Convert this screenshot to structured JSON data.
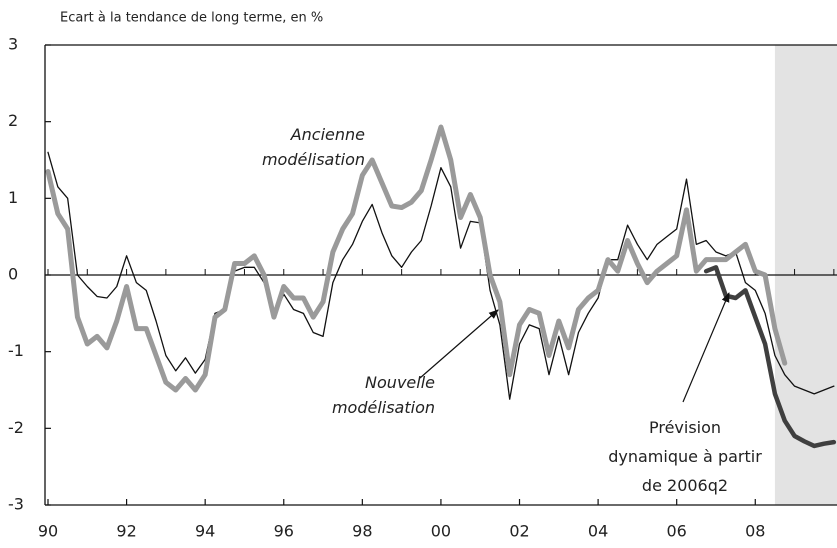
{
  "chart_data": {
    "type": "line",
    "y_axis_label": "Ecart à la tendance de long terme, en %",
    "x": [
      1990.0,
      1990.25,
      1990.5,
      1990.75,
      1991.0,
      1991.25,
      1991.5,
      1991.75,
      1992.0,
      1992.25,
      1992.5,
      1992.75,
      1993.0,
      1993.25,
      1993.5,
      1993.75,
      1994.0,
      1994.25,
      1994.5,
      1994.75,
      1995.0,
      1995.25,
      1995.5,
      1995.75,
      1996.0,
      1996.25,
      1996.5,
      1996.75,
      1997.0,
      1997.25,
      1997.5,
      1997.75,
      1998.0,
      1998.25,
      1998.5,
      1998.75,
      1999.0,
      1999.25,
      1999.5,
      1999.75,
      2000.0,
      2000.25,
      2000.5,
      2000.75,
      2001.0,
      2001.25,
      2001.5,
      2001.75,
      2002.0,
      2002.25,
      2002.5,
      2002.75,
      2003.0,
      2003.25,
      2003.5,
      2003.75,
      2004.0,
      2004.25,
      2004.5,
      2004.75,
      2005.0,
      2005.25,
      2005.5,
      2005.75,
      2006.0,
      2006.25,
      2006.5,
      2006.75,
      2007.0,
      2007.25,
      2007.5,
      2007.75,
      2008.0,
      2008.25,
      2008.5,
      2008.75,
      2009.0,
      2009.25,
      2009.5,
      2009.75,
      2010.0
    ],
    "series": [
      {
        "name": "Nouvelle modélisation",
        "color": "#111111",
        "width": 1.3,
        "values": [
          1.6,
          1.15,
          1.0,
          0,
          -0.15,
          -0.28,
          -0.3,
          -0.15,
          0.25,
          -0.1,
          -0.2,
          -0.6,
          -1.05,
          -1.25,
          -1.08,
          -1.28,
          -1.1,
          -0.5,
          -0.45,
          0.05,
          0.1,
          0.1,
          -0.1,
          -0.55,
          -0.25,
          -0.45,
          -0.5,
          -0.75,
          -0.8,
          -0.1,
          0.2,
          0.4,
          0.7,
          0.92,
          0.55,
          0.25,
          0.1,
          0.3,
          0.45,
          0.9,
          1.4,
          1.15,
          0.35,
          0.7,
          0.68,
          -0.2,
          -0.65,
          -1.62,
          -0.9,
          -0.65,
          -0.7,
          -1.3,
          -0.8,
          -1.3,
          -0.75,
          -0.5,
          -0.3,
          0.2,
          0.2,
          0.65,
          0.4,
          0.2,
          0.4,
          0.5,
          0.6,
          1.25,
          0.4,
          0.45,
          0.3,
          0.25,
          0.3,
          -0.1,
          -0.2,
          -0.5,
          -1.05,
          -1.3,
          -1.45,
          -1.5,
          -1.55,
          -1.5,
          -1.45
        ]
      },
      {
        "name": "Ancienne modélisation",
        "color": "#9a9a9a",
        "width": 5,
        "values": [
          1.35,
          0.8,
          0.6,
          -0.55,
          -0.9,
          -0.8,
          -0.95,
          -0.6,
          -0.15,
          -0.7,
          -0.7,
          -1.05,
          -1.4,
          -1.5,
          -1.35,
          -1.5,
          -1.3,
          -0.55,
          -0.45,
          0.15,
          0.15,
          0.25,
          0,
          -0.55,
          -0.15,
          -0.3,
          -0.3,
          -0.55,
          -0.35,
          0.3,
          0.6,
          0.8,
          1.3,
          1.5,
          1.2,
          0.9,
          0.88,
          0.95,
          1.1,
          1.5,
          1.93,
          1.5,
          0.75,
          1.05,
          0.75,
          0,
          -0.35,
          -1.3,
          -0.65,
          -0.45,
          -0.5,
          -1.05,
          -0.6,
          -0.95,
          -0.45,
          -0.3,
          -0.2,
          0.2,
          0.05,
          0.45,
          0.15,
          -0.1,
          0.05,
          0.15,
          0.25,
          0.85,
          0.05,
          0.2,
          0.2,
          0.2,
          0.3,
          0.4,
          0.05,
          0,
          -0.7,
          -1.15,
          null,
          null,
          null,
          null,
          null
        ]
      },
      {
        "name": "Prévision dynamique à partir de 2006q2",
        "color": "#3f3f3f",
        "width": 4.5,
        "values": [
          null,
          null,
          null,
          null,
          null,
          null,
          null,
          null,
          null,
          null,
          null,
          null,
          null,
          null,
          null,
          null,
          null,
          null,
          null,
          null,
          null,
          null,
          null,
          null,
          null,
          null,
          null,
          null,
          null,
          null,
          null,
          null,
          null,
          null,
          null,
          null,
          null,
          null,
          null,
          null,
          null,
          null,
          null,
          null,
          null,
          null,
          null,
          null,
          null,
          null,
          null,
          null,
          null,
          null,
          null,
          null,
          null,
          null,
          null,
          null,
          null,
          null,
          null,
          null,
          null,
          null,
          null,
          0.05,
          0.1,
          -0.27,
          -0.3,
          -0.2,
          -0.55,
          -0.9,
          -1.55,
          -1.9,
          -2.1,
          -2.17,
          -2.23,
          -2.2,
          -2.18
        ]
      }
    ],
    "xlim": [
      1990,
      2010.08
    ],
    "ylim": [
      -3,
      3
    ],
    "xticks": [
      {
        "value": 1990,
        "label": "90"
      },
      {
        "value": 1992,
        "label": "92"
      },
      {
        "value": 1994,
        "label": "94"
      },
      {
        "value": 1996,
        "label": "96"
      },
      {
        "value": 1998,
        "label": "98"
      },
      {
        "value": 2000,
        "label": "00"
      },
      {
        "value": 2002,
        "label": "02"
      },
      {
        "value": 2004,
        "label": "04"
      },
      {
        "value": 2006,
        "label": "06"
      },
      {
        "value": 2008,
        "label": "08"
      }
    ],
    "yticks": [
      -3,
      -2,
      -1,
      0,
      1,
      2,
      3
    ],
    "shaded_region": [
      2008.5,
      2010.08
    ],
    "shade_color": "#e3e3e3"
  }
}
